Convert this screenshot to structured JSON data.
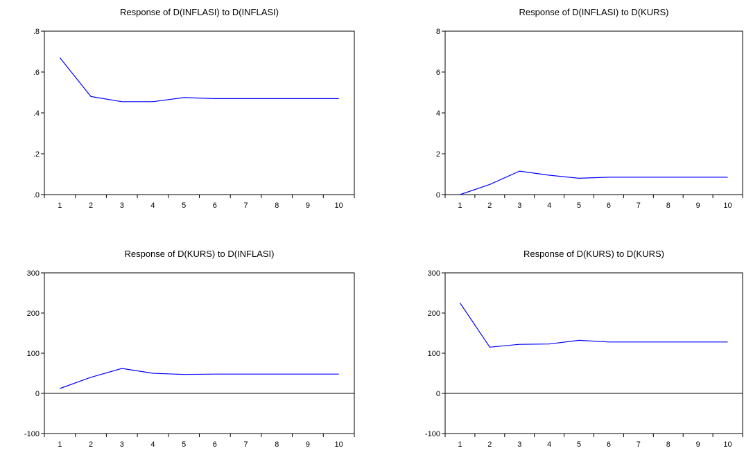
{
  "chart_data": [
    {
      "type": "line",
      "title": "Response of D(INFLASI) to D(INFLASI)",
      "x": [
        1,
        2,
        3,
        4,
        5,
        6,
        7,
        8,
        9,
        10
      ],
      "xticks": [
        "1",
        "2",
        "3",
        "4",
        "5",
        "6",
        "7",
        "8",
        "9",
        "10"
      ],
      "ylim": [
        0,
        0.8
      ],
      "yticks": [
        0,
        0.2,
        0.4,
        0.6,
        0.8
      ],
      "yticklabels": [
        ".0",
        ".2",
        ".4",
        ".6",
        ".8"
      ],
      "series": [
        {
          "color": "#0000ff",
          "values": [
            0.67,
            0.48,
            0.455,
            0.455,
            0.475,
            0.47,
            0.47,
            0.47,
            0.47,
            0.47
          ]
        }
      ],
      "zero_line": false,
      "grid": false
    },
    {
      "type": "line",
      "title": "Response of D(INFLASI) to D(KURS)",
      "x": [
        1,
        2,
        3,
        4,
        5,
        6,
        7,
        8,
        9,
        10
      ],
      "xticks": [
        "1",
        "2",
        "3",
        "4",
        "5",
        "6",
        "7",
        "8",
        "9",
        "10"
      ],
      "ylim": [
        0,
        8
      ],
      "yticks": [
        0,
        2,
        4,
        6,
        8
      ],
      "yticklabels": [
        "0",
        "2",
        "4",
        "6",
        "8"
      ],
      "series": [
        {
          "color": "#0000ff",
          "values": [
            0.0,
            0.5,
            1.15,
            0.95,
            0.8,
            0.85,
            0.85,
            0.85,
            0.85,
            0.85
          ]
        }
      ],
      "zero_line": false,
      "grid": false
    },
    {
      "type": "line",
      "title": "Response of D(KURS) to D(INFLASI)",
      "x": [
        1,
        2,
        3,
        4,
        5,
        6,
        7,
        8,
        9,
        10
      ],
      "xticks": [
        "1",
        "2",
        "3",
        "4",
        "5",
        "6",
        "7",
        "8",
        "9",
        "10"
      ],
      "ylim": [
        -100,
        300
      ],
      "yticks": [
        -100,
        0,
        100,
        200,
        300
      ],
      "yticklabels": [
        "-100",
        "0",
        "100",
        "200",
        "300"
      ],
      "series": [
        {
          "color": "#0000ff",
          "values": [
            12,
            40,
            62,
            50,
            47,
            48,
            48,
            48,
            48,
            48
          ]
        }
      ],
      "zero_line": true,
      "grid": false
    },
    {
      "type": "line",
      "title": "Response of D(KURS) to D(KURS)",
      "x": [
        1,
        2,
        3,
        4,
        5,
        6,
        7,
        8,
        9,
        10
      ],
      "xticks": [
        "1",
        "2",
        "3",
        "4",
        "5",
        "6",
        "7",
        "8",
        "9",
        "10"
      ],
      "ylim": [
        -100,
        300
      ],
      "yticks": [
        -100,
        0,
        100,
        200,
        300
      ],
      "yticklabels": [
        "-100",
        "0",
        "100",
        "200",
        "300"
      ],
      "series": [
        {
          "color": "#0000ff",
          "values": [
            225,
            115,
            122,
            123,
            132,
            128,
            128,
            128,
            128,
            128
          ]
        }
      ],
      "zero_line": true,
      "grid": false
    }
  ]
}
